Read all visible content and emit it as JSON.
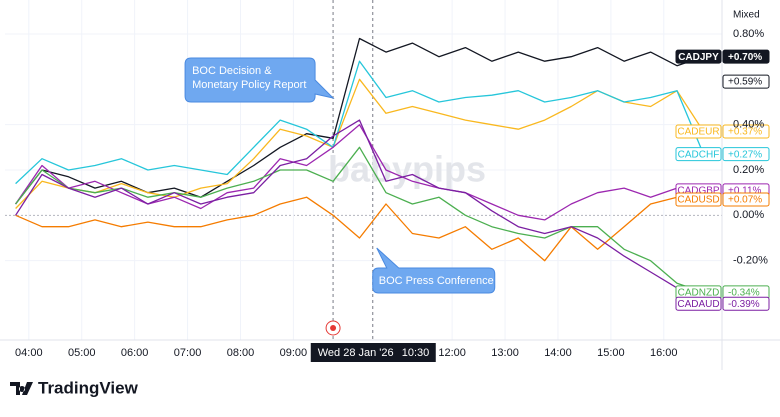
{
  "chart_data": {
    "type": "line",
    "scale_label": "Mixed",
    "watermark": "babypips",
    "brand": "TradingView",
    "xlim": [
      3.55,
      17.1
    ],
    "ylim": [
      -0.55,
      0.95
    ],
    "grid": true,
    "xticks": [
      {
        "value": 4,
        "label": "04:00"
      },
      {
        "value": 5,
        "label": "05:00"
      },
      {
        "value": 6,
        "label": "06:00"
      },
      {
        "value": 7,
        "label": "07:00"
      },
      {
        "value": 8,
        "label": "08:00"
      },
      {
        "value": 9,
        "label": "09:00"
      },
      {
        "value": 12,
        "label": "12:00"
      },
      {
        "value": 13,
        "label": "13:00"
      },
      {
        "value": 14,
        "label": "14:00"
      },
      {
        "value": 15,
        "label": "15:00"
      },
      {
        "value": 16,
        "label": "16:00"
      }
    ],
    "yticks": [
      {
        "value": 0.8,
        "label": "0.80%"
      },
      {
        "value": 0.4,
        "label": "0.40%"
      },
      {
        "value": 0.2,
        "label": "0.20%"
      },
      {
        "value": 0,
        "label": "0.00%"
      },
      {
        "value": -0.2,
        "label": "-0.20%"
      }
    ],
    "crosshair": {
      "x": 10.5,
      "date_label": "Wed 28 Jan '26",
      "time_label": "10:30"
    },
    "events": [
      {
        "x": 9.75,
        "lines": [
          "BOC Decision &",
          "Monetary Policy Report"
        ]
      },
      {
        "x": 10.5,
        "lines": [
          "BOC Press Conference"
        ]
      }
    ],
    "extra_badges": [
      {
        "value": 0.59,
        "label": "+0.59%"
      }
    ],
    "x": [
      3.75,
      4.25,
      4.75,
      5.25,
      5.75,
      6.25,
      6.75,
      7.25,
      7.75,
      8.25,
      8.75,
      9.25,
      9.75,
      10.25,
      10.75,
      11.25,
      11.75,
      12.25,
      12.75,
      13.25,
      13.75,
      14.25,
      14.75,
      15.25,
      15.75,
      16.25,
      16.75
    ],
    "series": [
      {
        "name": "CADJPY",
        "color": "#131722",
        "end_label": "+0.70%",
        "values": [
          0.05,
          0.2,
          0.17,
          0.12,
          0.15,
          0.1,
          0.12,
          0.08,
          0.15,
          0.22,
          0.3,
          0.36,
          0.34,
          0.78,
          0.72,
          0.76,
          0.7,
          0.74,
          0.68,
          0.72,
          0.68,
          0.7,
          0.74,
          0.68,
          0.72,
          0.66,
          0.7
        ]
      },
      {
        "name": "CADEUR",
        "color": "#f9b81f",
        "end_label": "+0.37%",
        "values": [
          0.03,
          0.15,
          0.12,
          0.1,
          0.14,
          0.1,
          0.08,
          0.12,
          0.14,
          0.25,
          0.38,
          0.35,
          0.3,
          0.6,
          0.45,
          0.48,
          0.45,
          0.42,
          0.4,
          0.38,
          0.42,
          0.48,
          0.55,
          0.5,
          0.48,
          0.55,
          0.37
        ]
      },
      {
        "name": "CADCHF",
        "color": "#26c6da",
        "end_label": "+0.27%",
        "values": [
          0.14,
          0.25,
          0.2,
          0.22,
          0.25,
          0.2,
          0.22,
          0.2,
          0.18,
          0.3,
          0.42,
          0.38,
          0.3,
          0.68,
          0.52,
          0.55,
          0.5,
          0.52,
          0.53,
          0.55,
          0.5,
          0.52,
          0.55,
          0.5,
          0.52,
          0.55,
          0.27
        ]
      },
      {
        "name": "CADGBP",
        "color": "#9c27b0",
        "end_label": "+0.11%",
        "values": [
          0.05,
          0.22,
          0.12,
          0.15,
          0.1,
          0.05,
          0.08,
          0.03,
          0.1,
          0.12,
          0.25,
          0.22,
          0.3,
          0.4,
          0.2,
          0.15,
          0.12,
          0.1,
          0.05,
          0.0,
          -0.02,
          0.05,
          0.1,
          0.12,
          0.08,
          0.12,
          0.11
        ]
      },
      {
        "name": "CADUSD",
        "color": "#f57c00",
        "end_label": "+0.07%",
        "values": [
          0.0,
          -0.05,
          -0.05,
          -0.02,
          -0.05,
          -0.03,
          -0.05,
          -0.05,
          -0.02,
          0.0,
          0.05,
          0.08,
          0.0,
          -0.1,
          0.05,
          -0.08,
          -0.1,
          -0.05,
          -0.15,
          -0.1,
          -0.2,
          -0.05,
          -0.15,
          -0.05,
          0.05,
          0.08,
          0.07
        ]
      },
      {
        "name": "CADNZD",
        "color": "#4caf50",
        "end_label": "-0.34%",
        "values": [
          0.05,
          0.2,
          0.12,
          0.1,
          0.12,
          0.08,
          0.1,
          0.08,
          0.12,
          0.15,
          0.2,
          0.2,
          0.15,
          0.3,
          0.1,
          0.05,
          0.08,
          0.0,
          -0.05,
          -0.08,
          -0.1,
          -0.05,
          -0.05,
          -0.15,
          -0.2,
          -0.3,
          -0.34
        ]
      },
      {
        "name": "CADAUD",
        "color": "#7b1fa2",
        "end_label": "-0.39%",
        "values": [
          0.0,
          0.18,
          0.12,
          0.08,
          0.12,
          0.05,
          0.1,
          0.05,
          0.08,
          0.1,
          0.22,
          0.25,
          0.35,
          0.42,
          0.15,
          0.18,
          0.12,
          0.1,
          0.02,
          -0.05,
          -0.08,
          -0.05,
          -0.1,
          -0.18,
          -0.25,
          -0.32,
          -0.39
        ]
      }
    ]
  }
}
